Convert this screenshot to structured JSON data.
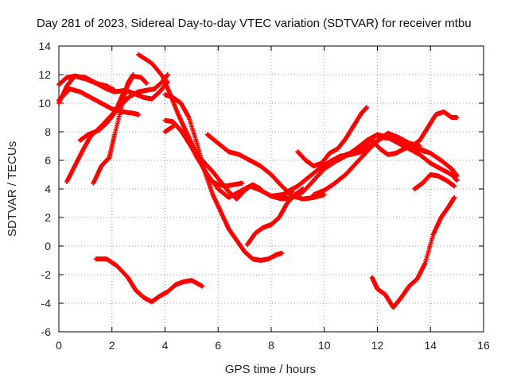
{
  "chart_data": {
    "type": "scatter",
    "title": "Day 281 of 2023, Sidereal Day-to-day VTEC variation (SDTVAR) for receiver mtbu",
    "xlabel": "GPS time / hours",
    "ylabel": "SDTVAR / TECUs",
    "xlim": [
      0,
      16
    ],
    "ylim": [
      -6,
      14
    ],
    "x_ticks": [
      0,
      2,
      4,
      6,
      8,
      10,
      12,
      14,
      16
    ],
    "y_ticks": [
      -6,
      -4,
      -2,
      0,
      2,
      4,
      6,
      8,
      10,
      12,
      14
    ],
    "x_tick_labels": [
      "0",
      "2",
      "4",
      "6",
      "8",
      "10",
      "12",
      "14",
      "16"
    ],
    "y_tick_labels": [
      "-6",
      "-4",
      "-2",
      "0",
      "2",
      "4",
      "6",
      "8",
      "10",
      "12",
      "14"
    ],
    "grid": true,
    "marker": "plus",
    "color": "#ff0000",
    "series": [
      {
        "x": [
          0.0,
          0.3,
          0.6,
          1.0,
          1.4,
          1.8,
          2.1
        ],
        "y": [
          11.3,
          11.8,
          11.9,
          11.7,
          11.4,
          11.2,
          10.9
        ]
      },
      {
        "x": [
          0.0,
          0.2,
          0.4,
          0.8,
          1.2,
          1.6,
          2.0,
          2.4,
          2.8,
          3.0
        ],
        "y": [
          10.2,
          10.6,
          11.0,
          10.8,
          10.4,
          10.0,
          9.6,
          9.4,
          9.3,
          9.2
        ]
      },
      {
        "x": [
          0.3,
          0.6,
          0.9,
          1.2,
          1.6,
          2.0,
          2.4,
          2.7,
          3.0,
          3.3,
          3.6,
          3.9,
          4.1
        ],
        "y": [
          4.5,
          5.6,
          6.7,
          7.7,
          8.4,
          9.2,
          10.0,
          10.5,
          10.8,
          10.9,
          11.0,
          11.5,
          12.0
        ]
      },
      {
        "x": [
          0.0,
          0.3,
          0.6,
          1.0,
          1.4,
          1.8,
          2.1,
          2.5,
          2.8,
          3.2,
          3.5,
          3.8,
          4.1
        ],
        "y": [
          10.0,
          11.2,
          11.9,
          11.8,
          11.4,
          11.0,
          10.8,
          10.9,
          10.7,
          10.4,
          10.3,
          10.8,
          11.5
        ]
      },
      {
        "x": [
          0.8,
          1.1,
          1.5,
          1.8,
          2.1,
          2.4,
          2.8,
          3.1,
          3.3
        ],
        "y": [
          7.4,
          7.8,
          8.1,
          8.6,
          9.3,
          10.6,
          11.9,
          11.8,
          11.4
        ]
      },
      {
        "x": [
          1.3,
          1.6,
          1.9,
          2.1,
          2.4,
          2.6,
          2.8
        ],
        "y": [
          4.4,
          5.6,
          6.2,
          7.8,
          10.0,
          11.4,
          12.0
        ]
      },
      {
        "x": [
          3.0,
          3.5,
          3.9,
          4.2,
          4.5,
          4.8,
          5.1,
          5.4,
          5.7,
          6.0,
          6.3,
          6.6,
          6.9
        ],
        "y": [
          13.4,
          12.8,
          11.9,
          10.6,
          9.2,
          8.0,
          6.8,
          5.6,
          4.6,
          4.3,
          4.2,
          4.3,
          4.4
        ]
      },
      {
        "x": [
          4.0,
          4.3,
          4.6,
          4.9,
          5.2,
          5.5,
          5.8,
          6.1,
          6.4,
          6.7,
          7.0,
          7.3,
          7.6
        ],
        "y": [
          8.8,
          8.7,
          8.1,
          7.2,
          6.4,
          5.8,
          5.2,
          4.5,
          3.8,
          3.3,
          3.9,
          4.3,
          4.0
        ]
      },
      {
        "x": [
          4.0,
          4.3,
          4.6,
          4.9,
          5.2,
          5.5,
          5.8,
          6.1,
          6.4,
          6.7,
          7.0,
          7.3,
          7.6,
          7.9,
          8.2,
          8.4
        ],
        "y": [
          10.6,
          10.4,
          10.0,
          9.0,
          7.2,
          5.2,
          3.6,
          2.4,
          1.2,
          0.4,
          -0.4,
          -0.9,
          -1.0,
          -0.9,
          -0.6,
          -0.5
        ]
      },
      {
        "x": [
          4.0,
          4.4,
          4.8,
          5.2,
          5.6,
          6.0,
          6.4,
          6.8,
          7.2,
          7.6,
          8.0,
          8.4,
          8.8
        ],
        "y": [
          8.0,
          8.5,
          7.6,
          6.2,
          5.0,
          4.0,
          3.4,
          3.8,
          4.2,
          3.9,
          3.5,
          3.6,
          3.8
        ]
      },
      {
        "x": [
          5.6,
          6.0,
          6.4,
          6.8,
          7.2,
          7.6,
          8.0,
          8.4,
          8.8,
          9.2,
          9.6,
          10.0
        ],
        "y": [
          7.8,
          7.2,
          6.6,
          6.4,
          6.0,
          5.6,
          5.0,
          4.2,
          3.5,
          3.3,
          3.4,
          3.6
        ]
      },
      {
        "x": [
          7.1,
          7.4,
          7.7,
          8.0,
          8.3,
          8.6,
          8.9,
          9.2
        ],
        "y": [
          0.1,
          0.9,
          1.3,
          1.5,
          2.0,
          3.0,
          3.6,
          4.0
        ]
      },
      {
        "x": [
          8.0,
          8.4,
          8.8,
          9.2,
          9.6,
          10.0,
          10.4,
          10.8,
          11.2,
          11.6,
          12.0,
          12.4,
          12.8,
          13.2,
          13.6,
          14.0,
          14.4,
          14.8,
          15.0
        ],
        "y": [
          3.5,
          3.3,
          3.4,
          3.8,
          4.6,
          5.4,
          5.9,
          6.3,
          6.8,
          7.4,
          7.8,
          7.6,
          7.2,
          7.0,
          6.8,
          6.5,
          6.0,
          5.4,
          4.9
        ]
      },
      {
        "x": [
          8.6,
          9.0,
          9.4,
          9.8,
          10.2,
          10.6,
          11.0,
          11.4,
          11.8,
          12.2,
          12.6,
          13.0,
          13.4,
          13.8
        ],
        "y": [
          3.8,
          4.2,
          4.8,
          5.4,
          5.9,
          6.3,
          6.4,
          6.6,
          7.1,
          7.6,
          7.5,
          7.2,
          6.9,
          6.6
        ]
      },
      {
        "x": [
          9.0,
          9.3,
          9.6,
          9.9,
          10.2,
          10.5,
          10.8,
          11.1,
          11.4,
          11.6
        ],
        "y": [
          6.6,
          6.0,
          5.6,
          5.8,
          6.5,
          6.8,
          7.5,
          8.4,
          9.3,
          9.7
        ]
      },
      {
        "x": [
          9.6,
          10.0,
          10.4,
          10.8,
          11.2,
          11.6,
          12.0,
          12.4,
          12.8,
          13.2,
          13.6
        ],
        "y": [
          3.6,
          3.9,
          4.4,
          5.0,
          5.8,
          6.6,
          7.4,
          7.9,
          7.6,
          7.2,
          7.0
        ]
      },
      {
        "x": [
          10.8,
          11.2,
          11.6,
          12.0,
          12.4,
          12.8,
          13.2,
          13.6,
          14.0,
          14.4,
          14.8,
          15.0
        ],
        "y": [
          6.4,
          6.6,
          7.2,
          7.8,
          7.6,
          7.2,
          6.8,
          6.4,
          5.8,
          5.4,
          5.0,
          4.6
        ]
      },
      {
        "x": [
          11.8,
          12.1,
          12.4,
          12.7,
          13.0,
          13.3,
          13.6,
          13.9,
          14.2,
          14.5,
          14.8,
          15.0
        ],
        "y": [
          7.4,
          6.8,
          6.4,
          6.5,
          6.8,
          7.0,
          7.4,
          8.3,
          9.2,
          9.4,
          9.0,
          9.0
        ]
      },
      {
        "x": [
          13.4,
          13.7,
          14.0,
          14.3,
          14.6,
          14.9
        ],
        "y": [
          4.0,
          4.4,
          5.0,
          4.9,
          4.6,
          4.2
        ]
      },
      {
        "x": [
          11.8,
          12.0,
          12.3,
          12.6,
          12.9,
          13.2,
          13.5,
          13.8,
          14.1,
          14.4,
          14.7,
          14.9
        ],
        "y": [
          -2.2,
          -3.0,
          -3.4,
          -4.3,
          -3.6,
          -2.8,
          -2.3,
          -1.2,
          0.8,
          2.0,
          2.8,
          3.4
        ]
      },
      {
        "x": [
          1.4,
          1.8,
          2.2,
          2.6,
          2.9,
          3.2,
          3.5,
          3.8,
          4.1,
          4.4,
          4.7,
          5.0,
          5.4
        ],
        "y": [
          -0.9,
          -0.9,
          -1.4,
          -2.2,
          -3.1,
          -3.6,
          -3.9,
          -3.5,
          -3.2,
          -2.7,
          -2.5,
          -2.4,
          -2.8
        ]
      }
    ]
  }
}
